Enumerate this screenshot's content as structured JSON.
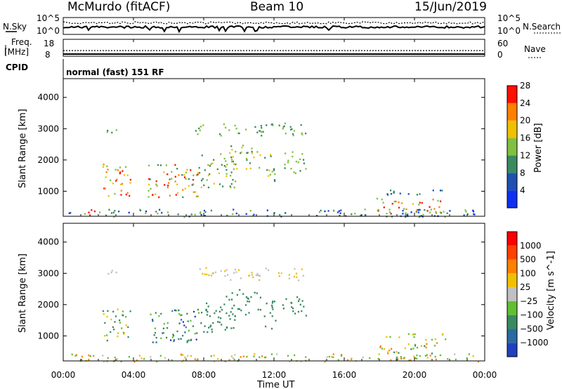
{
  "header": {
    "station": "McMurdo (fitACF)",
    "beam": "Beam 10",
    "date": "15/Jun/2019"
  },
  "noise_panel": {
    "left_label_top": "N.Sky",
    "left_tick_top": "10^5",
    "left_tick_bottom": "10^0",
    "right_label": "N.Search",
    "right_tick_top": "10^5",
    "right_tick_bottom": "10^0"
  },
  "freq_panel": {
    "left_label_line1": "Freq.",
    "left_label_line2": "[MHz]",
    "left_tick_top": "18",
    "left_tick_bottom": "8",
    "right_label": "Nave",
    "right_tick_top": "60",
    "right_tick_bottom": "0"
  },
  "cpid": {
    "label": "CPID",
    "value": "normal (fast) 151 RF"
  },
  "chart_data": [
    {
      "type": "heatmap",
      "name": "power",
      "ylabel": "Slant Range [km]",
      "ylim": [
        200,
        4600
      ],
      "yticks": [
        "1000",
        "2000",
        "3000",
        "4000"
      ],
      "colorbar_label": "Power [dB]",
      "colorbar_ticks": [
        "4",
        "8",
        "12",
        "16",
        "20",
        "24",
        "28"
      ],
      "colors": [
        "#1030f0",
        "#2050b0",
        "#3a8a60",
        "#80c040",
        "#f0c000",
        "#ff8000",
        "#ff1000"
      ]
    },
    {
      "type": "heatmap",
      "name": "velocity",
      "ylabel": "Slant Range [km]",
      "ylim": [
        200,
        4600
      ],
      "yticks": [
        "1000",
        "2000",
        "3000",
        "4000"
      ],
      "colorbar_label": "Velocity [m s^-1]",
      "colorbar_ticks": [
        "1000",
        "500",
        "100",
        "25",
        "−25",
        "−100",
        "−500",
        "−1000"
      ],
      "colors": [
        "#2040c0",
        "#2a6aa0",
        "#3a8a60",
        "#60c030",
        "#c0c0c0",
        "#f0c000",
        "#ff8000",
        "#ff4000",
        "#ff0000"
      ]
    }
  ],
  "x_axis": {
    "ticks": [
      "00:00",
      "04:00",
      "08:00",
      "12:00",
      "16:00",
      "20:00",
      "00:00"
    ],
    "label": "Time UT"
  }
}
